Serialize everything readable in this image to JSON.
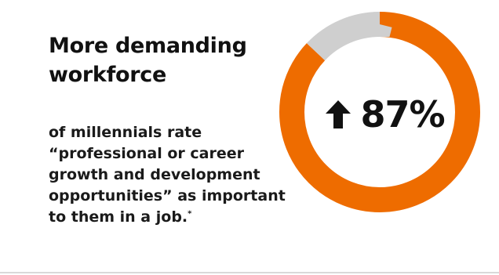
{
  "headline": {
    "line1": "More demanding",
    "line2": "workforce"
  },
  "description": {
    "lines": [
      "of millennials rate",
      "“professional or career",
      "growth and development",
      "opportunities” as important",
      "to them in a job."
    ],
    "footnote_marker": "*"
  },
  "chart_data": {
    "type": "pie",
    "style": "donut",
    "slices": [
      {
        "value": 87,
        "color": "#EE6C00"
      },
      {
        "value": 13,
        "color": "#CFCFCF"
      }
    ],
    "center_label": "87%",
    "center_icon": "up-arrow-icon"
  },
  "colors": {
    "accent": "#EE6C00",
    "track": "#CFCFCF",
    "text": "#111111"
  }
}
